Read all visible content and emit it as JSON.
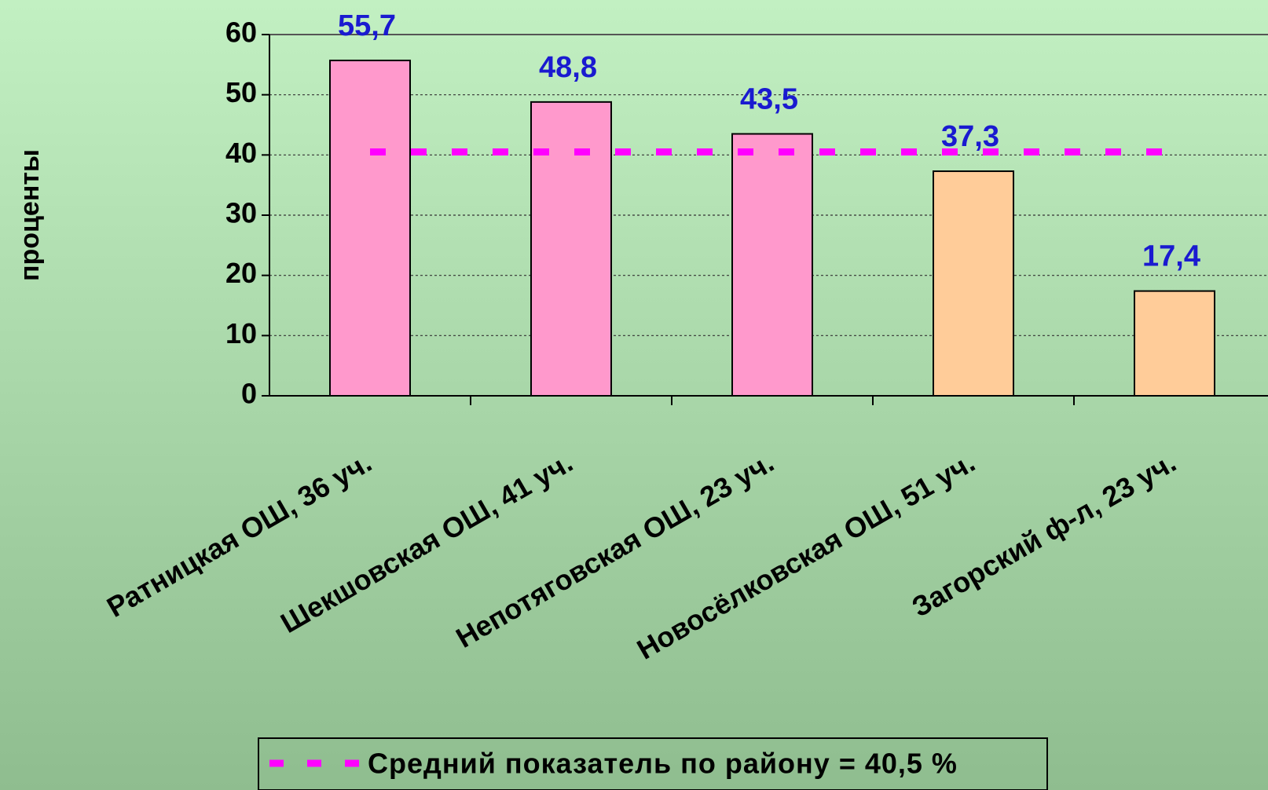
{
  "chart_data": {
    "type": "bar",
    "y_axis_label": "проценты",
    "categories": [
      "Ратницкая ОШ, 36 уч.",
      "Шекшовская ОШ, 41 уч.",
      "Непотяговская ОШ, 23 уч.",
      "Новосёлковская ОШ, 51 уч.",
      "Загорский ф-л, 23 уч."
    ],
    "values": [
      55.7,
      48.8,
      43.5,
      37.3,
      17.4
    ],
    "value_labels": [
      "55,7",
      "48,8",
      "43,5",
      "37,3",
      "17,4"
    ],
    "colors": [
      "#ff99cc",
      "#ff99cc",
      "#ff99cc",
      "#ffcc99",
      "#ffcc99"
    ],
    "ylim": [
      0,
      60
    ],
    "yticks": [
      0,
      10,
      20,
      30,
      40,
      50,
      60
    ],
    "grid": true,
    "reference_line": {
      "value": 40.5,
      "label": "Средний показатель по району = 40,5 %",
      "color": "#ff00ff"
    }
  }
}
